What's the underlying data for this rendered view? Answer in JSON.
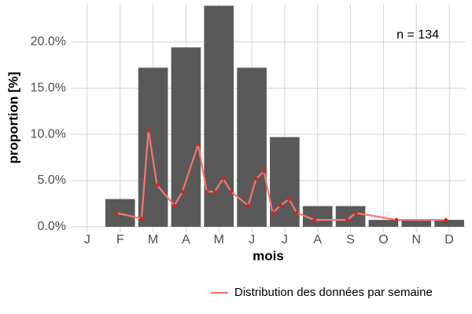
{
  "chart_data": {
    "type": "bar",
    "categories": [
      "J",
      "F",
      "M",
      "A",
      "M",
      "J",
      "J",
      "A",
      "S",
      "O",
      "N",
      "D"
    ],
    "values": [
      0,
      3.0,
      17.2,
      19.4,
      23.9,
      17.2,
      9.7,
      2.24,
      2.24,
      0.75,
      0.75,
      0.75
    ],
    "color": "#595959",
    "xlabel": "mois",
    "ylabel": "proportion [%]",
    "annotation": "n = 134",
    "xlim": [
      0.5,
      12.5
    ],
    "ylim": [
      -0.6,
      24.1
    ],
    "yticks": [
      {
        "value": 0,
        "label": "0.0%"
      },
      {
        "value": 5,
        "label": "5.0%"
      },
      {
        "value": 10,
        "label": "10.0%"
      },
      {
        "value": 15,
        "label": "15.0%"
      },
      {
        "value": 20,
        "label": "20.0%"
      }
    ],
    "grid": true,
    "legend": "bottom-right",
    "overlay": {
      "type": "line",
      "name": "Distribution des données par semaine",
      "color": "#f8766d",
      "point_color": "#e0201b",
      "x": [
        1.88,
        2.65,
        2.86,
        3.12,
        3.65,
        3.89,
        4.37,
        4.63,
        4.87,
        5.13,
        5.37,
        5.89,
        6.13,
        6.37,
        6.63,
        6.87,
        7.13,
        7.37,
        7.9,
        8.9,
        9.16,
        10.4,
        11.9
      ],
      "values": [
        1.5,
        0.9,
        10.4,
        4.5,
        2.3,
        3.8,
        8.9,
        3.8,
        3.8,
        5.2,
        3.8,
        2.3,
        5.2,
        6.0,
        1.5,
        2.3,
        3.0,
        1.5,
        0.75,
        0.75,
        1.5,
        0.75,
        0.75
      ]
    }
  }
}
